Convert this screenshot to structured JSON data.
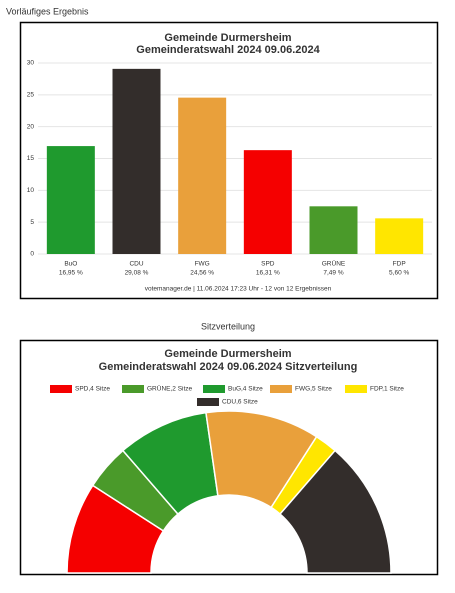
{
  "section_titles": [
    "Vorläufiges Ergebnis",
    "Sitzverteilung"
  ],
  "chart_data": [
    {
      "type": "bar",
      "title": "Gemeinde Durmersheim",
      "subtitle": "Gemeinderatswahl 2024 09.06.2024",
      "categories": [
        "BuO",
        "CDU",
        "FWG",
        "SPD",
        "GRÜNE",
        "FDP"
      ],
      "values": [
        16.95,
        29.08,
        24.56,
        16.31,
        7.49,
        5.6
      ],
      "value_labels": [
        "16,95 %",
        "29,08 %",
        "24,56 %",
        "16,31 %",
        "7,49 %",
        "5,60 %"
      ],
      "colors": [
        "#1f9a2e",
        "#332d2b",
        "#e9a03b",
        "#f50000",
        "#4a9a2a",
        "#ffe600"
      ],
      "ylim": [
        0,
        30
      ],
      "yticks": [
        0,
        5,
        10,
        15,
        20,
        25,
        30
      ],
      "grid": true,
      "footer": "votemanager.de | 11.06.2024 17:23 Uhr - 12 von 12 Ergebnissen"
    },
    {
      "type": "halfpie",
      "title": "Gemeinde Durmersheim",
      "subtitle": "Gemeinderatswahl 2024 09.06.2024 Sitzverteilung",
      "labels": [
        "SPD,4 Sitze",
        "GRÜNE,2 Sitze",
        "BuG,4 Sitze",
        "FWG,5 Sitze",
        "FDP,1 Sitze",
        "CDU,6 Sitze"
      ],
      "values": [
        4,
        2,
        4,
        5,
        1,
        6
      ],
      "colors": [
        "#f50000",
        "#4a9a2a",
        "#1f9a2e",
        "#e9a03b",
        "#ffe600",
        "#332d2b"
      ]
    }
  ]
}
